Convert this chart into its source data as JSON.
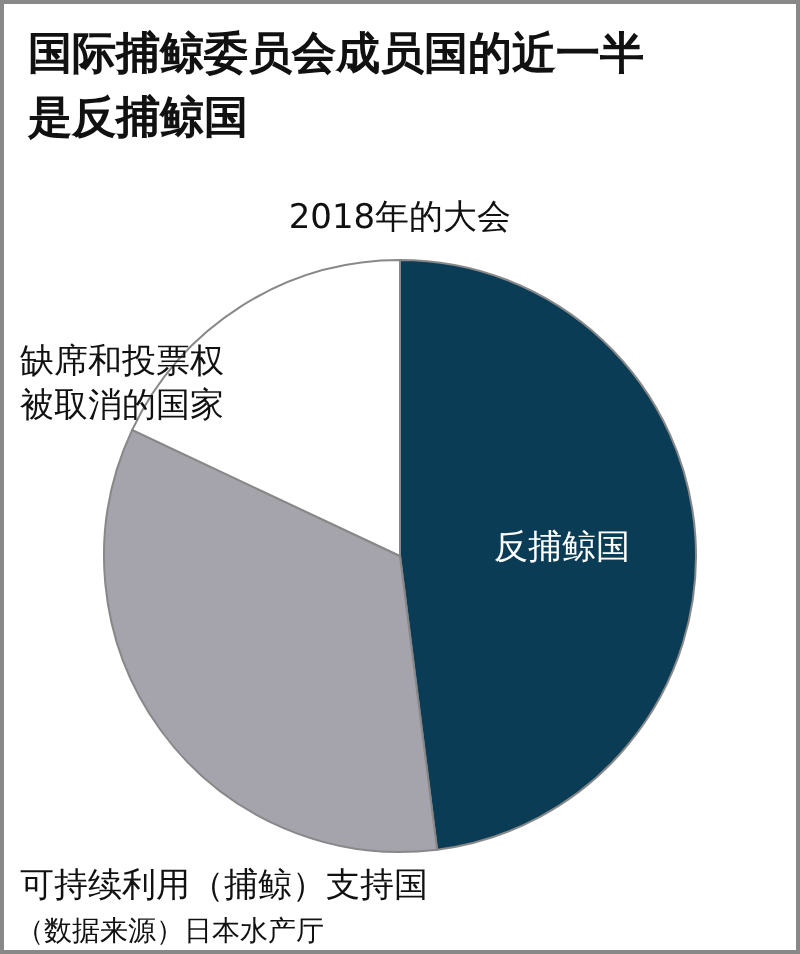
{
  "chart_data": {
    "type": "pie",
    "title": "国际捕鲸委员会成员国的近一半是反捕鲸国",
    "subtitle": "2018年的大会",
    "categories": [
      "反捕鲸国",
      "可持续利用（捕鲸）支持国",
      "缺席和投票权被取消的国家"
    ],
    "values": [
      48,
      34,
      18
    ],
    "colors": [
      "#0b3c55",
      "#a5a3ab",
      "#ffffff"
    ],
    "annotations": [
      "（数据来源）日本水产厅"
    ]
  }
}
